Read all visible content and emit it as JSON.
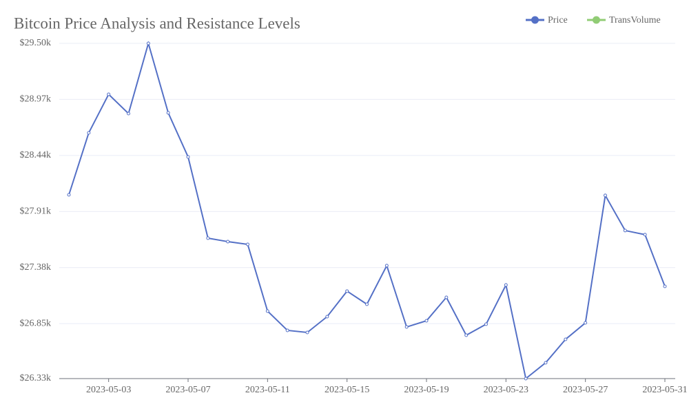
{
  "chart_data": {
    "type": "line",
    "title": "Bitcoin Price Analysis and Resistance Levels",
    "x": [
      "2023-05-01",
      "2023-05-02",
      "2023-05-03",
      "2023-05-04",
      "2023-05-05",
      "2023-05-06",
      "2023-05-07",
      "2023-05-08",
      "2023-05-09",
      "2023-05-10",
      "2023-05-11",
      "2023-05-12",
      "2023-05-13",
      "2023-05-14",
      "2023-05-15",
      "2023-05-16",
      "2023-05-17",
      "2023-05-18",
      "2023-05-19",
      "2023-05-20",
      "2023-05-21",
      "2023-05-22",
      "2023-05-23",
      "2023-05-24",
      "2023-05-25",
      "2023-05-26",
      "2023-05-27",
      "2023-05-28",
      "2023-05-29",
      "2023-05-30",
      "2023-05-31"
    ],
    "xticks": [
      "2023-05-03",
      "2023-05-07",
      "2023-05-11",
      "2023-05-15",
      "2023-05-19",
      "2023-05-23",
      "2023-05-27",
      "2023-05-31"
    ],
    "series": [
      {
        "name": "Price",
        "color": "#5470c6",
        "values": [
          28068,
          28654,
          29018,
          28836,
          29500,
          28843,
          28426,
          27658,
          27625,
          27599,
          26968,
          26786,
          26766,
          26916,
          27157,
          27033,
          27398,
          26818,
          26877,
          27098,
          26740,
          26844,
          27215,
          26330,
          26480,
          26701,
          26857,
          28062,
          27730,
          27691,
          27202
        ]
      },
      {
        "name": "TransVolume",
        "color": "#91cc75",
        "values": [
          null,
          null,
          null,
          null,
          null,
          null,
          null,
          null,
          null,
          null,
          null,
          null,
          null,
          null,
          null,
          null,
          null,
          null,
          null,
          null,
          null,
          null,
          null,
          null,
          null,
          null,
          null,
          null,
          null,
          null,
          null
        ]
      }
    ],
    "ylim": [
      26330,
      29500
    ],
    "yticks": [
      {
        "value": 26330,
        "label": "$26.33k"
      },
      {
        "value": 26850,
        "label": "$26.85k"
      },
      {
        "value": 27380,
        "label": "$27.38k"
      },
      {
        "value": 27910,
        "label": "$27.91k"
      },
      {
        "value": 28440,
        "label": "$28.44k"
      },
      {
        "value": 28970,
        "label": "$28.97k"
      },
      {
        "value": 29500,
        "label": "$29.50k"
      }
    ],
    "grid": true,
    "legend": "top-right"
  }
}
